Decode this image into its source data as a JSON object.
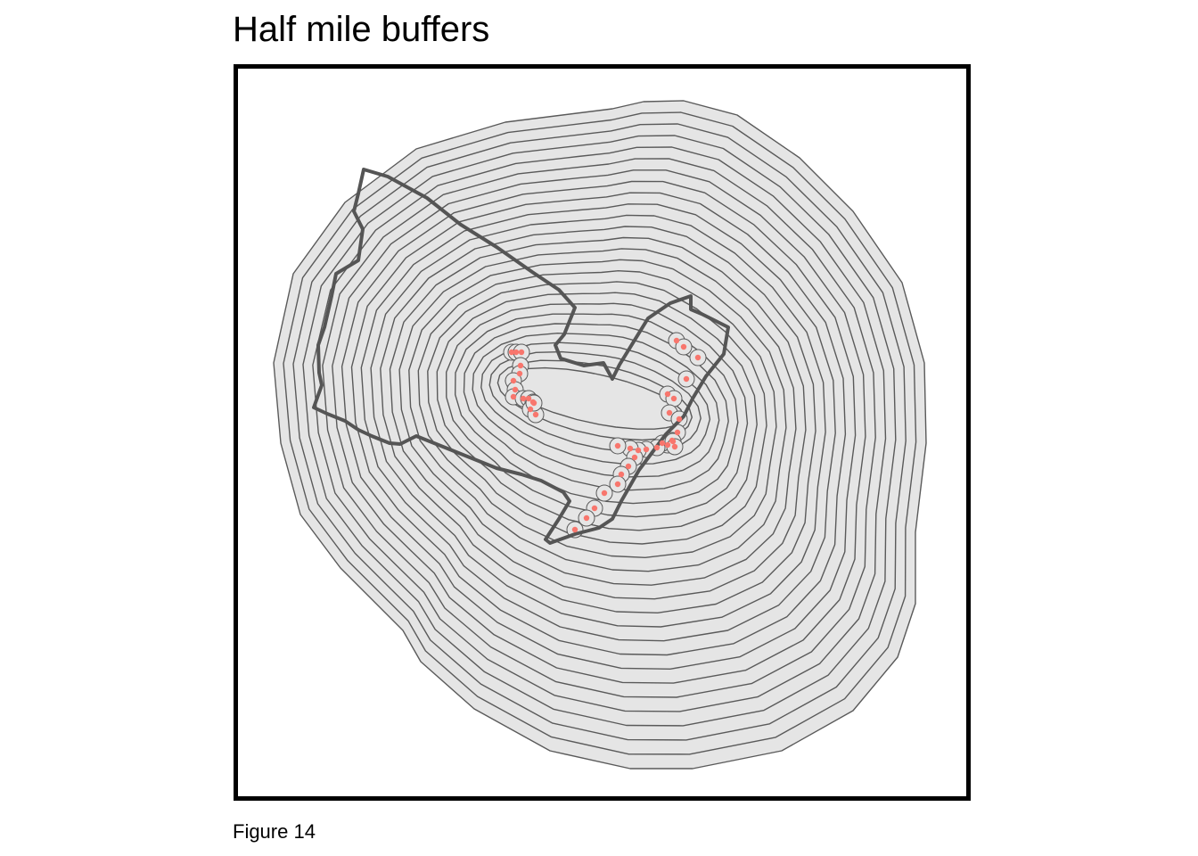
{
  "title": "Half mile buffers",
  "caption": "Figure 14",
  "map": {
    "buffer_ring_count": 26,
    "colors": {
      "buffer_fill": "#e5e5e5",
      "buffer_stroke": "#5a5a5a",
      "boundary_stroke": "#555555",
      "point_fill": "#f8766d",
      "panel_border": "#000000"
    }
  }
}
